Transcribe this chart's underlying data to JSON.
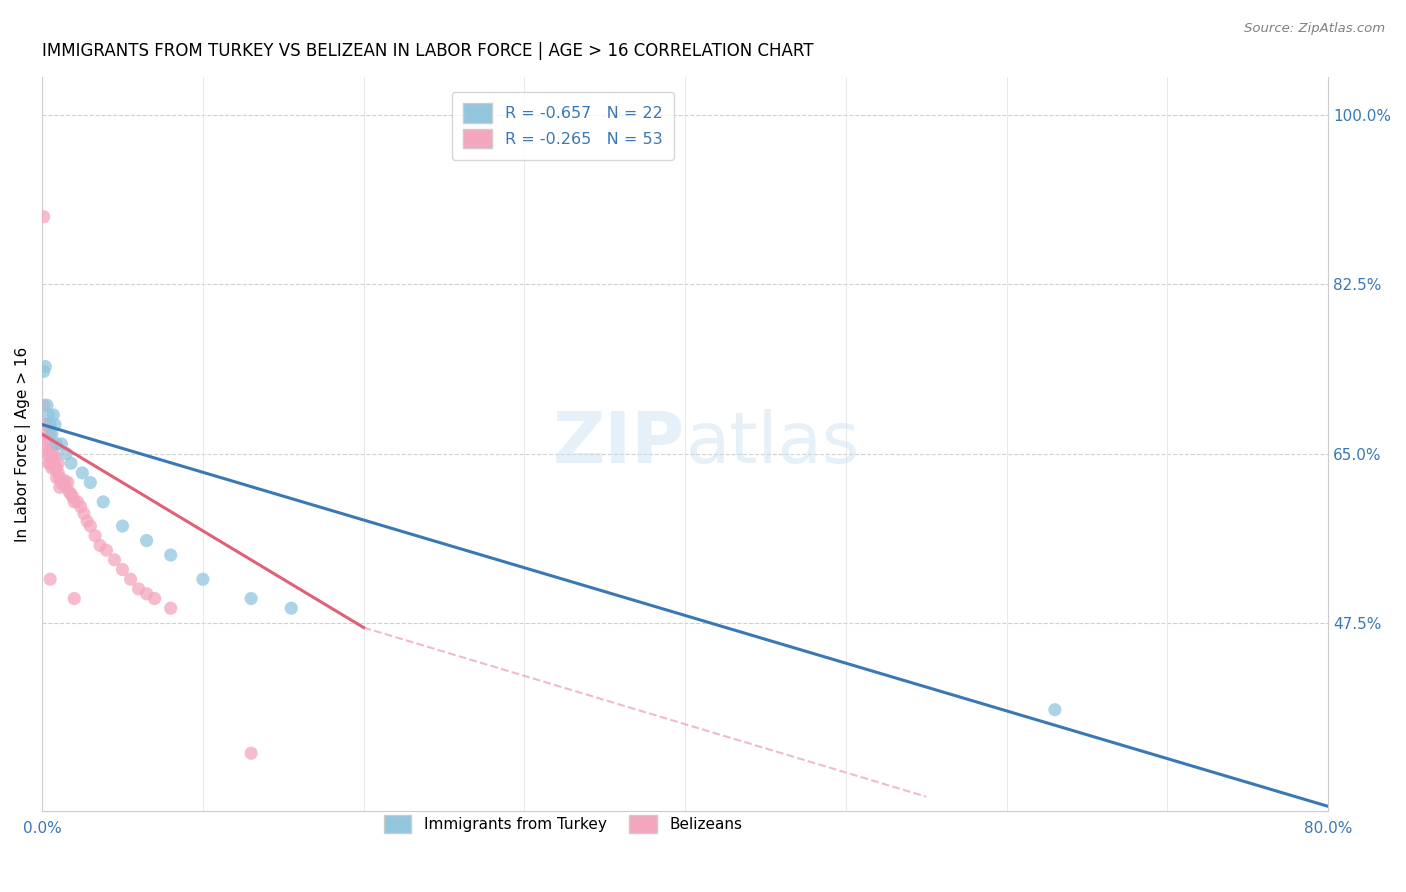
{
  "title": "IMMIGRANTS FROM TURKEY VS BELIZEAN IN LABOR FORCE | AGE > 16 CORRELATION CHART",
  "source": "Source: ZipAtlas.com",
  "ylabel": "In Labor Force | Age > 16",
  "legend_label1": "Immigrants from Turkey",
  "legend_label2": "Belizeans",
  "R1": -0.657,
  "N1": 22,
  "R2": -0.265,
  "N2": 53,
  "color1": "#92c5de",
  "color2": "#f4a6be",
  "line_color1": "#3a78b5",
  "line_color2": "#e0607a",
  "line_color2_dash": "#e8a0b0",
  "xlim": [
    0.0,
    0.8
  ],
  "ylim": [
    0.28,
    1.04
  ],
  "right_ytick_vals": [
    0.475,
    0.65,
    0.825,
    1.0
  ],
  "right_ytick_labels": [
    "47.5%",
    "65.0%",
    "82.5%",
    "100.0%"
  ],
  "turkey_x": [
    0.001,
    0.002,
    0.003,
    0.004,
    0.005,
    0.006,
    0.007,
    0.008,
    0.009,
    0.012,
    0.015,
    0.018,
    0.025,
    0.03,
    0.038,
    0.05,
    0.065,
    0.08,
    0.1,
    0.13,
    0.155,
    0.63
  ],
  "turkey_y": [
    0.735,
    0.74,
    0.7,
    0.69,
    0.68,
    0.67,
    0.69,
    0.68,
    0.66,
    0.66,
    0.65,
    0.64,
    0.63,
    0.62,
    0.6,
    0.575,
    0.56,
    0.545,
    0.52,
    0.5,
    0.49,
    0.385
  ],
  "belizean_x": [
    0.001,
    0.001,
    0.002,
    0.002,
    0.003,
    0.003,
    0.003,
    0.004,
    0.004,
    0.004,
    0.005,
    0.005,
    0.005,
    0.006,
    0.006,
    0.006,
    0.007,
    0.007,
    0.008,
    0.008,
    0.009,
    0.009,
    0.01,
    0.01,
    0.011,
    0.011,
    0.012,
    0.013,
    0.014,
    0.015,
    0.016,
    0.017,
    0.018,
    0.019,
    0.02,
    0.022,
    0.024,
    0.026,
    0.028,
    0.03,
    0.033,
    0.036,
    0.04,
    0.045,
    0.05,
    0.055,
    0.06,
    0.065,
    0.07,
    0.08,
    0.005,
    0.02,
    0.13
  ],
  "belizean_y": [
    0.895,
    0.7,
    0.68,
    0.66,
    0.68,
    0.665,
    0.65,
    0.67,
    0.65,
    0.64,
    0.67,
    0.655,
    0.64,
    0.655,
    0.645,
    0.635,
    0.65,
    0.64,
    0.645,
    0.635,
    0.635,
    0.625,
    0.64,
    0.63,
    0.625,
    0.615,
    0.62,
    0.618,
    0.622,
    0.615,
    0.62,
    0.61,
    0.608,
    0.605,
    0.6,
    0.6,
    0.595,
    0.588,
    0.58,
    0.575,
    0.565,
    0.555,
    0.55,
    0.54,
    0.53,
    0.52,
    0.51,
    0.505,
    0.5,
    0.49,
    0.52,
    0.5,
    0.34
  ],
  "blue_line_x0": 0.0,
  "blue_line_y0": 0.68,
  "blue_line_x1": 0.8,
  "blue_line_y1": 0.285,
  "pink_line_solid_x0": 0.0,
  "pink_line_solid_y0": 0.67,
  "pink_line_solid_x1": 0.2,
  "pink_line_solid_y1": 0.47,
  "pink_line_dash_x1": 0.55,
  "pink_line_dash_y1": 0.295
}
